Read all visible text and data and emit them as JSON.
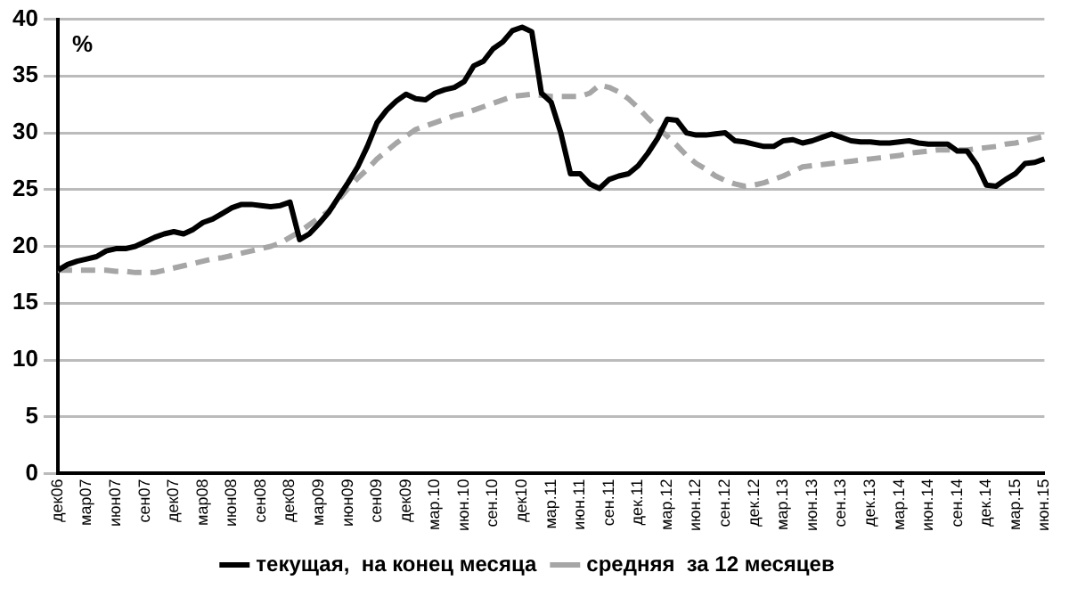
{
  "chart_data": {
    "type": "line",
    "ylabel": "%",
    "categories": [
      "дек06",
      null,
      null,
      "мар07",
      null,
      null,
      "июн07",
      null,
      null,
      "сен07",
      null,
      null,
      "дек07",
      null,
      null,
      "мар08",
      null,
      null,
      "июн08",
      null,
      null,
      "сен08",
      null,
      null,
      "дек08",
      null,
      null,
      "мар09",
      null,
      null,
      "июн09",
      null,
      null,
      "сен09",
      null,
      null,
      "дек09",
      null,
      null,
      "мар.10",
      null,
      null,
      "июн.10",
      null,
      null,
      "сен.10",
      null,
      null,
      "дек10",
      null,
      null,
      "мар.11",
      null,
      null,
      "июн.11",
      null,
      null,
      "сен.11",
      null,
      null,
      "дек.11",
      null,
      null,
      "мар.12",
      null,
      null,
      "июн.12",
      null,
      null,
      "сен.12",
      null,
      null,
      "дек.12",
      null,
      null,
      "мар.13",
      null,
      null,
      "июн.13",
      null,
      null,
      "сен.13",
      null,
      null,
      "дек.13",
      null,
      null,
      "мар.14",
      null,
      null,
      "июн.14",
      null,
      null,
      "сен.14",
      null,
      null,
      "дек.14",
      null,
      null,
      "мар.15",
      null,
      null,
      "июн.15"
    ],
    "series": [
      {
        "name": "текущая,  на конец месяца",
        "color": "#000000",
        "line_style": "solid",
        "values": [
          17.9,
          18.4,
          18.7,
          18.9,
          19.1,
          19.6,
          19.8,
          19.8,
          20.0,
          20.4,
          20.8,
          21.1,
          21.3,
          21.1,
          21.5,
          22.1,
          22.4,
          22.9,
          23.4,
          23.7,
          23.7,
          23.6,
          23.5,
          23.6,
          23.9,
          20.6,
          21.1,
          22.0,
          23.0,
          24.3,
          25.6,
          27.0,
          28.8,
          30.9,
          32.0,
          32.8,
          33.4,
          33.0,
          32.9,
          33.5,
          33.8,
          34.0,
          34.5,
          35.9,
          36.3,
          37.4,
          38.0,
          39.0,
          39.3,
          38.9,
          33.5,
          32.7,
          30.0,
          26.4,
          26.4,
          25.5,
          25.1,
          25.9,
          26.2,
          26.4,
          27.1,
          28.2,
          29.5,
          31.2,
          31.1,
          30.0,
          29.8,
          29.8,
          29.9,
          30.0,
          29.3,
          29.2,
          29.0,
          28.8,
          28.8,
          29.3,
          29.4,
          29.1,
          29.3,
          29.6,
          29.9,
          29.6,
          29.3,
          29.2,
          29.2,
          29.1,
          29.1,
          29.2,
          29.3,
          29.1,
          29.0,
          29.0,
          29.0,
          28.4,
          28.4,
          27.2,
          25.4,
          25.3,
          25.9,
          26.4,
          27.3,
          27.4,
          27.7
        ]
      },
      {
        "name": "средняя  за 12 месяцев",
        "color": "#a6a6a6",
        "line_style": "dashed",
        "values": [
          17.9,
          17.9,
          17.9,
          17.9,
          17.9,
          17.9,
          17.8,
          17.8,
          17.7,
          17.7,
          17.7,
          17.9,
          18.1,
          18.3,
          18.5,
          18.7,
          18.9,
          19.0,
          19.2,
          19.4,
          19.6,
          19.8,
          20.0,
          20.3,
          20.8,
          21.3,
          21.9,
          22.5,
          23.1,
          24.1,
          25.1,
          26.0,
          26.8,
          27.7,
          28.4,
          29.1,
          29.7,
          30.3,
          30.6,
          30.9,
          31.2,
          31.5,
          31.7,
          32.0,
          32.3,
          32.6,
          32.9,
          33.2,
          33.3,
          33.4,
          33.3,
          33.2,
          33.2,
          33.2,
          33.2,
          33.5,
          34.2,
          34.0,
          33.6,
          33.0,
          32.2,
          31.3,
          30.5,
          29.7,
          28.9,
          28.0,
          27.3,
          26.8,
          26.2,
          25.8,
          25.5,
          25.3,
          25.4,
          25.6,
          25.9,
          26.2,
          26.6,
          27.0,
          27.1,
          27.2,
          27.3,
          27.4,
          27.5,
          27.6,
          27.7,
          27.8,
          27.9,
          28.0,
          28.2,
          28.3,
          28.4,
          28.5,
          28.5,
          28.5,
          28.5,
          28.6,
          28.7,
          28.8,
          29.0,
          29.1,
          29.3,
          29.5,
          29.7
        ]
      }
    ],
    "ylim": [
      0,
      40
    ],
    "yticks": [
      0,
      5,
      10,
      15,
      20,
      25,
      30,
      35,
      40
    ],
    "grid": "y",
    "legend": "bottom",
    "marker": "none"
  }
}
